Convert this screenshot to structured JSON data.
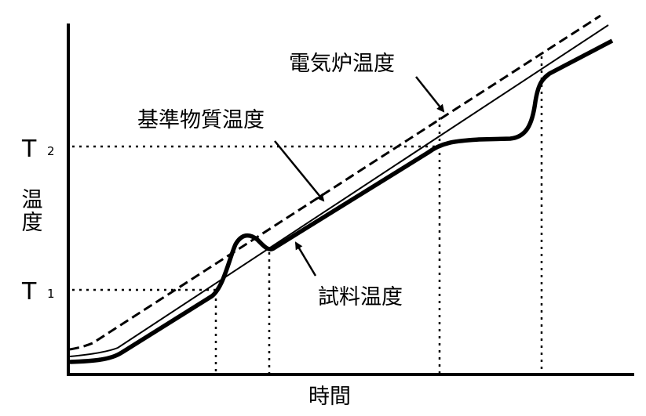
{
  "labels": {
    "furnace": "電気炉温度",
    "reference": "基準物質温度",
    "sample": "試料温度"
  },
  "axes": {
    "y": "温度",
    "x": "時間"
  },
  "markers": [
    {
      "symbol": "T",
      "subscript": "2"
    },
    {
      "symbol": "T",
      "subscript": "1"
    }
  ]
}
